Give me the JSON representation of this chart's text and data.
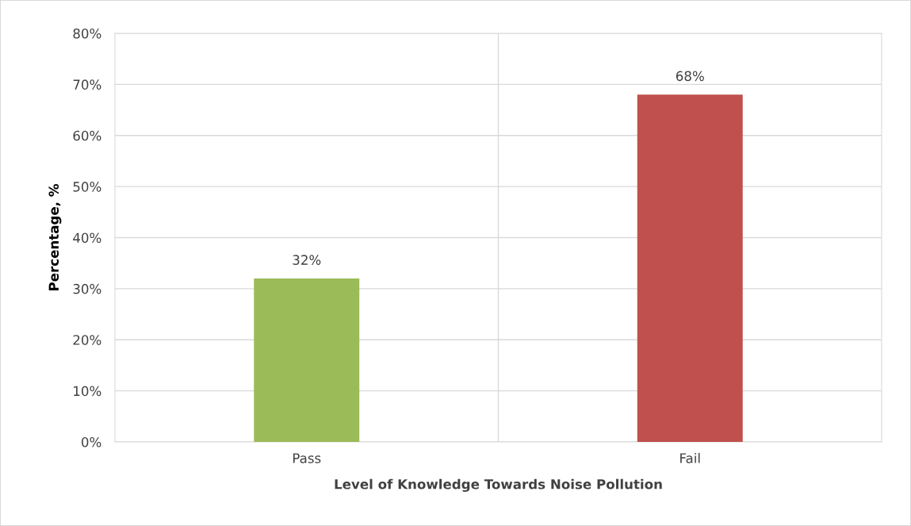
{
  "chart_data": {
    "type": "bar",
    "categories": [
      "Pass",
      "Fail"
    ],
    "values": [
      32,
      68
    ],
    "colors": [
      "#9bbb59",
      "#c0504d"
    ],
    "value_labels": [
      "32%",
      "68%"
    ],
    "xlabel": "Level of Knowledge Towards Noise Pollution",
    "ylabel": "Percentage, %",
    "ylim": [
      0,
      80
    ],
    "yticks": [
      {
        "value": 0,
        "label": "0%"
      },
      {
        "value": 10,
        "label": "10%"
      },
      {
        "value": 20,
        "label": "20%"
      },
      {
        "value": 30,
        "label": "30%"
      },
      {
        "value": 40,
        "label": "40%"
      },
      {
        "value": 50,
        "label": "50%"
      },
      {
        "value": 60,
        "label": "60%"
      },
      {
        "value": 70,
        "label": "70%"
      },
      {
        "value": 80,
        "label": "80%"
      }
    ],
    "grid": true,
    "legend": false
  }
}
